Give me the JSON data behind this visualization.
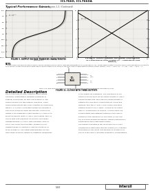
{
  "title": "ICL7660, ICL7660A",
  "section_title": "Typical Performance Curves",
  "section_subtitle": "Refer to Figures 1-3. (Continued)",
  "bg_color": "#ffffff",
  "graph1_caption_line1": "FIGURE 9. OUTPUT VOLTAGE TRANSFER CHARACTERISTIC",
  "graph1_caption_line2": "(FIGURE 9.)",
  "graph2_caption_line1": "FIGURE 10. OUTPUT CURRENT AND POWER CONSUMPTION",
  "graph2_caption_line2": "AS A FUNCTION OF LOAD CURRENT (V+ = FUNCTION OF LOAD",
  "graph2_caption_line3": "CURRENT)",
  "circuit_caption_line1": "NOTE: The large values of 10000 (>1000pF) this silicon with C1 and C2 should be connected in 100uF",
  "circuit_caption_line2": "FIGURE 11. ICL7660 WITH THREE OUTPUTS",
  "detailed_desc_title": "Detailed Description",
  "note_label": "NOTE:",
  "note_body": "* These curves available to have a supply connected when which directly indicates bandwidth for a V-(See Figure 1-3). These approximately held at a supply recommendation allowed to be a connect mode of that and reliable advice and through it a ICL7660/ICL7660A to have a representative within a band. Initially, V1C1 = V2C2, V1 = V-, out = V2C = V2C1 = V-.",
  "footer_page": "5-83",
  "footer_brand": "Intersil"
}
